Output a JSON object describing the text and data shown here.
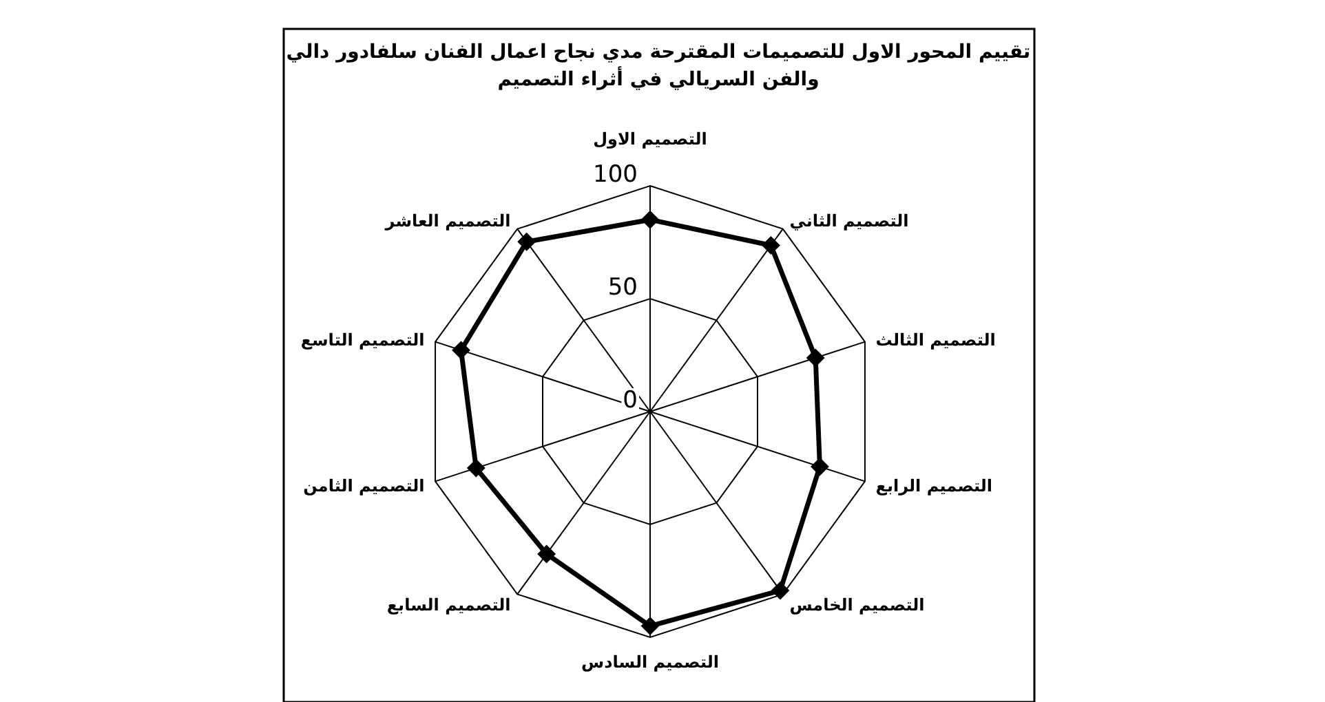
{
  "chart_data": {
    "type": "radar",
    "title": "تقييم المحور الاول للتصميمات المقترحة مدي نجاح اعمال الفنان سلفادور دالي\nوالفن السريالي في أثراء التصميم",
    "categories": [
      "التصميم الاول",
      "التصميم الثاني",
      "التصميم الثالث",
      "التصميم الرابع",
      "التصميم الخامس",
      "التصميم السادس",
      "التصميم السابع",
      "التصميم الثامن",
      "التصميم التاسع",
      "التصميم العاشر"
    ],
    "series": [
      {
        "color": "#000000",
        "values": [
          85,
          91,
          77,
          79,
          98,
          95,
          78,
          81,
          88,
          93
        ]
      }
    ],
    "ylim": [
      0,
      100
    ],
    "yticks": [
      0,
      50,
      100
    ],
    "grid": true,
    "marker": "diamond",
    "line_style": "solid"
  }
}
